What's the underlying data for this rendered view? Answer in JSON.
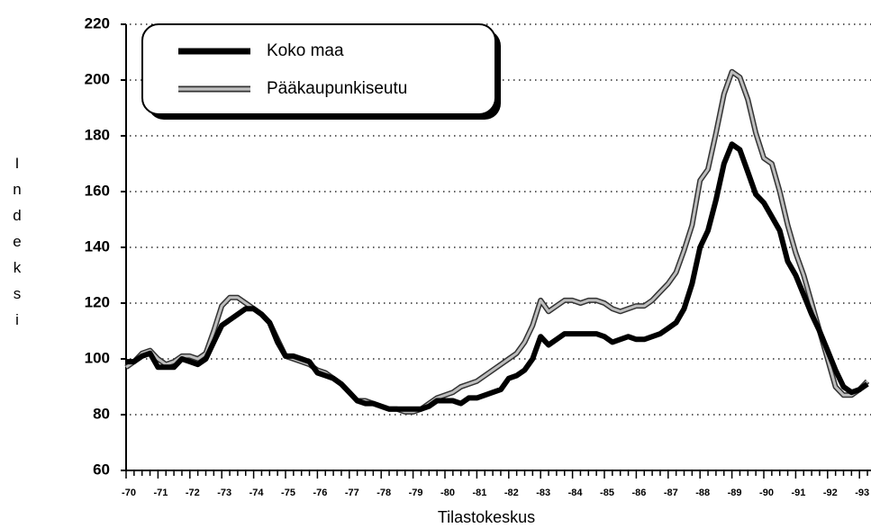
{
  "chart_data": {
    "type": "line",
    "y_label": "Indeksi",
    "x_label": "Tilastokeskus",
    "categories": [
      "-70",
      null,
      null,
      null,
      "-71",
      null,
      null,
      null,
      "-72",
      null,
      null,
      null,
      "-73",
      null,
      null,
      null,
      "-74",
      null,
      null,
      null,
      "-75",
      null,
      null,
      null,
      "-76",
      null,
      null,
      null,
      "-77",
      null,
      null,
      null,
      "-78",
      null,
      null,
      null,
      "-79",
      null,
      null,
      null,
      "-80",
      null,
      null,
      null,
      "-81",
      null,
      null,
      null,
      "-82",
      null,
      null,
      null,
      "-83",
      null,
      null,
      null,
      "-84",
      null,
      null,
      null,
      "-85",
      null,
      null,
      null,
      "-86",
      null,
      null,
      null,
      "-87",
      null,
      null,
      null,
      "-88",
      null,
      null,
      null,
      "-89",
      null,
      null,
      null,
      "-90",
      null,
      null,
      null,
      "-91",
      null,
      null,
      null,
      "-92",
      null,
      null,
      null,
      "-93",
      null
    ],
    "series": [
      {
        "name": "Koko maa",
        "color": "#000000",
        "style": "solid",
        "values": [
          99,
          99,
          101,
          102,
          97,
          97,
          97,
          100,
          99,
          98,
          100,
          106,
          112,
          114,
          116,
          118,
          118,
          116,
          113,
          106,
          101,
          101,
          100,
          99,
          95,
          94,
          93,
          91,
          88,
          85,
          84,
          84,
          83,
          82,
          82,
          82,
          82,
          82,
          83,
          85,
          85,
          85,
          84,
          86,
          86,
          87,
          88,
          89,
          93,
          94,
          96,
          100,
          108,
          105,
          107,
          109,
          109,
          109,
          109,
          109,
          108,
          106,
          107,
          108,
          107,
          107,
          108,
          109,
          111,
          113,
          118,
          127,
          140,
          146,
          157,
          170,
          177,
          175,
          167,
          159,
          156,
          151,
          146,
          135,
          130,
          123,
          116,
          110,
          103,
          96,
          90,
          88,
          89,
          91
        ]
      },
      {
        "name": "Pääkaupunkiseutu",
        "color": "#bdbdbd",
        "style": "double",
        "values": [
          97,
          99,
          102,
          103,
          100,
          98,
          99,
          101,
          101,
          100,
          102,
          110,
          119,
          122,
          122,
          120,
          118,
          116,
          113,
          107,
          101,
          100,
          99,
          98,
          96,
          95,
          93,
          91,
          88,
          85,
          85,
          84,
          83,
          82,
          82,
          81,
          81,
          82,
          84,
          86,
          87,
          88,
          90,
          91,
          92,
          94,
          96,
          98,
          100,
          102,
          106,
          112,
          121,
          117,
          119,
          121,
          121,
          120,
          121,
          121,
          120,
          118,
          117,
          118,
          119,
          119,
          121,
          124,
          127,
          131,
          139,
          148,
          164,
          168,
          181,
          195,
          203,
          201,
          193,
          181,
          172,
          170,
          160,
          148,
          138,
          130,
          120,
          110,
          100,
          90,
          87,
          87,
          89,
          92
        ]
      }
    ],
    "ylim": [
      60,
      220
    ],
    "yticks": [
      60,
      80,
      100,
      120,
      140,
      160,
      180,
      200,
      220
    ],
    "grid": true,
    "legend": "upper left"
  }
}
